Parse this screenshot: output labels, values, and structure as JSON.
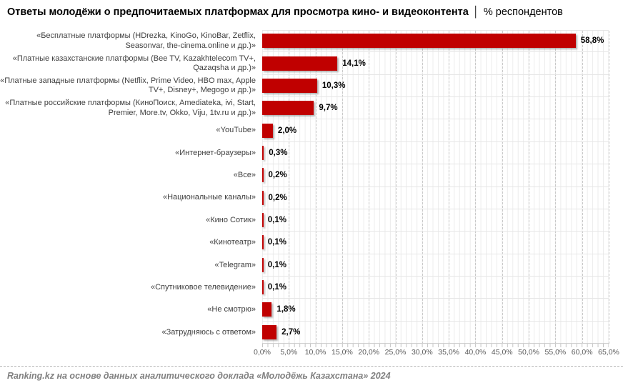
{
  "title": {
    "main": "Ответы молодёжи о предпочитаемых платформах для просмотра кино- и видеоконтента",
    "separator": "│",
    "suffix": "% респондентов"
  },
  "footer": "Ranking.kz на основе данных аналитического доклада «Молодёжь Казахстана» 2024",
  "colors": {
    "bar": "#C00000",
    "value_label": "#000000",
    "category_label": "#3F3F3F",
    "axis_label": "#595959",
    "grid_minor": "#ECECEC",
    "grid_major": "#C9C9C9",
    "row_line": "#E6E6E6"
  },
  "chart_data": {
    "type": "bar",
    "orientation": "horizontal",
    "title": "Ответы молодёжи о предпочитаемых платформах для просмотра кино- и видеоконтента | % респондентов",
    "categories": [
      "«Бесплатные платформы (HDrezka, KinoGo, KinoBar, Zetflix, Seasonvar, the-cinema.online и др.)»",
      "«Платные казахстанские платформы (Bee TV, Kazakhtelecom TV+, Qazaqsha и др.)»",
      "«Платные западные платформы (Netflix, Prime Video, HBO max, Apple TV+, Disney+, Megogo и др.)»",
      "«Платные российские платформы (КиноПоиск, Amediateka, ivi, Start, Premier, More.tv, Okko, Viju, 1tv.ru и др.)»",
      "«YouTube»",
      "«Интернет-браузеры»",
      "«Все»",
      "«Национальные каналы»",
      "«Кино Сотик»",
      "«Кинотеатр»",
      "«Telegram»",
      "«Спутниковое телевидение»",
      "«Не смотрю»",
      "«Затрудняюсь с ответом»"
    ],
    "values": [
      58.8,
      14.1,
      10.3,
      9.7,
      2.0,
      0.3,
      0.2,
      0.2,
      0.1,
      0.1,
      0.1,
      0.1,
      1.8,
      2.7
    ],
    "value_labels": [
      "58,8%",
      "14,1%",
      "10,3%",
      "9,7%",
      "2,0%",
      "0,3%",
      "0,2%",
      "0,2%",
      "0,1%",
      "0,1%",
      "0,1%",
      "0,1%",
      "1,8%",
      "2,7%"
    ],
    "xlabel": "",
    "ylabel": "",
    "xlim": [
      0,
      65
    ],
    "x_ticks": [
      "0,0%",
      "5,0%",
      "10,0%",
      "15,0%",
      "20,0%",
      "25,0%",
      "30,0%",
      "35,0%",
      "40,0%",
      "45,0%",
      "50,0%",
      "55,0%",
      "60,0%",
      "65,0%"
    ],
    "grid": true,
    "legend": false
  }
}
